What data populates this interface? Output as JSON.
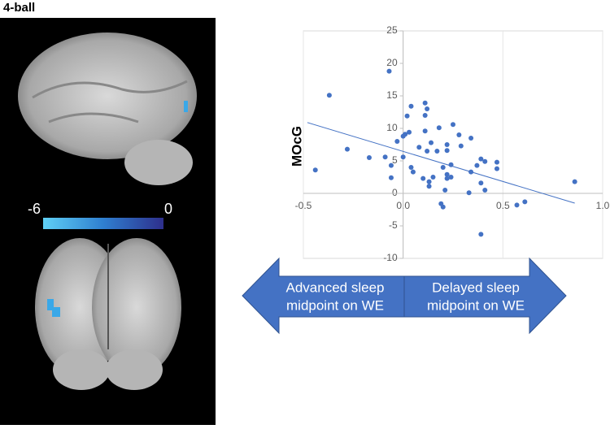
{
  "figure_title": "4-ball",
  "colorbar": {
    "min": -6,
    "max": 0
  },
  "chart_data": {
    "type": "scatter",
    "y_label": "MOcG",
    "x": [
      -0.37,
      -0.44,
      -0.28,
      -0.17,
      -0.07,
      -0.09,
      -0.06,
      -0.06,
      -0.03,
      0,
      0,
      0.01,
      0.02,
      0.03,
      0.04,
      0.04,
      0.05,
      0.08,
      0.1,
      0.11,
      0.11,
      0.12,
      0.11,
      0.12,
      0.13,
      0.13,
      0.14,
      0.15,
      0.17,
      0.18,
      0.2,
      0.19,
      0.2,
      0.21,
      0.22,
      0.22,
      0.22,
      0.22,
      0.24,
      0.24,
      0.25,
      0.28,
      0.29,
      0.33,
      0.34,
      0.34,
      0.37,
      0.39,
      0.39,
      0.39,
      0.41,
      0.41,
      0.47,
      0.47,
      0.57,
      0.61,
      0.86
    ],
    "y": [
      15.1,
      3.6,
      6.8,
      5.5,
      18.8,
      5.6,
      2.4,
      4.3,
      8,
      5.6,
      8.8,
      9.1,
      11.9,
      9.4,
      13.4,
      4,
      3.3,
      7.1,
      2.3,
      13.9,
      9.6,
      13,
      12,
      6.5,
      1.8,
      1.1,
      7.8,
      2.5,
      6.5,
      10.1,
      4,
      -1.6,
      -2.1,
      0.5,
      2.9,
      6.6,
      2.3,
      7.5,
      2.5,
      4.4,
      10.6,
      9,
      7.3,
      0.1,
      8.5,
      3.3,
      4.3,
      5.3,
      1.6,
      -6.3,
      0.5,
      4.9,
      4.8,
      3.8,
      -1.8,
      -1.3,
      1.8
    ],
    "color": "#4472c4",
    "trendline": {
      "x": [
        -0.48,
        0.86
      ],
      "y": [
        10.9,
        -1.5
      ]
    },
    "xlim": [
      -0.5,
      1
    ],
    "xticks": [
      -0.5,
      {
        "value": 0,
        "label": "0.0"
      },
      0.5,
      {
        "value": 1,
        "label": "1.0"
      }
    ],
    "ylim": [
      -10,
      25
    ],
    "yticks": [
      -10,
      -5,
      0,
      5,
      10,
      15,
      20,
      25
    ],
    "grid": true
  },
  "arrow": {
    "left": [
      "Advanced sleep",
      "midpoint on WE"
    ],
    "right": [
      "Delayed sleep",
      "midpoint on WE"
    ],
    "color": "#4472c4"
  }
}
